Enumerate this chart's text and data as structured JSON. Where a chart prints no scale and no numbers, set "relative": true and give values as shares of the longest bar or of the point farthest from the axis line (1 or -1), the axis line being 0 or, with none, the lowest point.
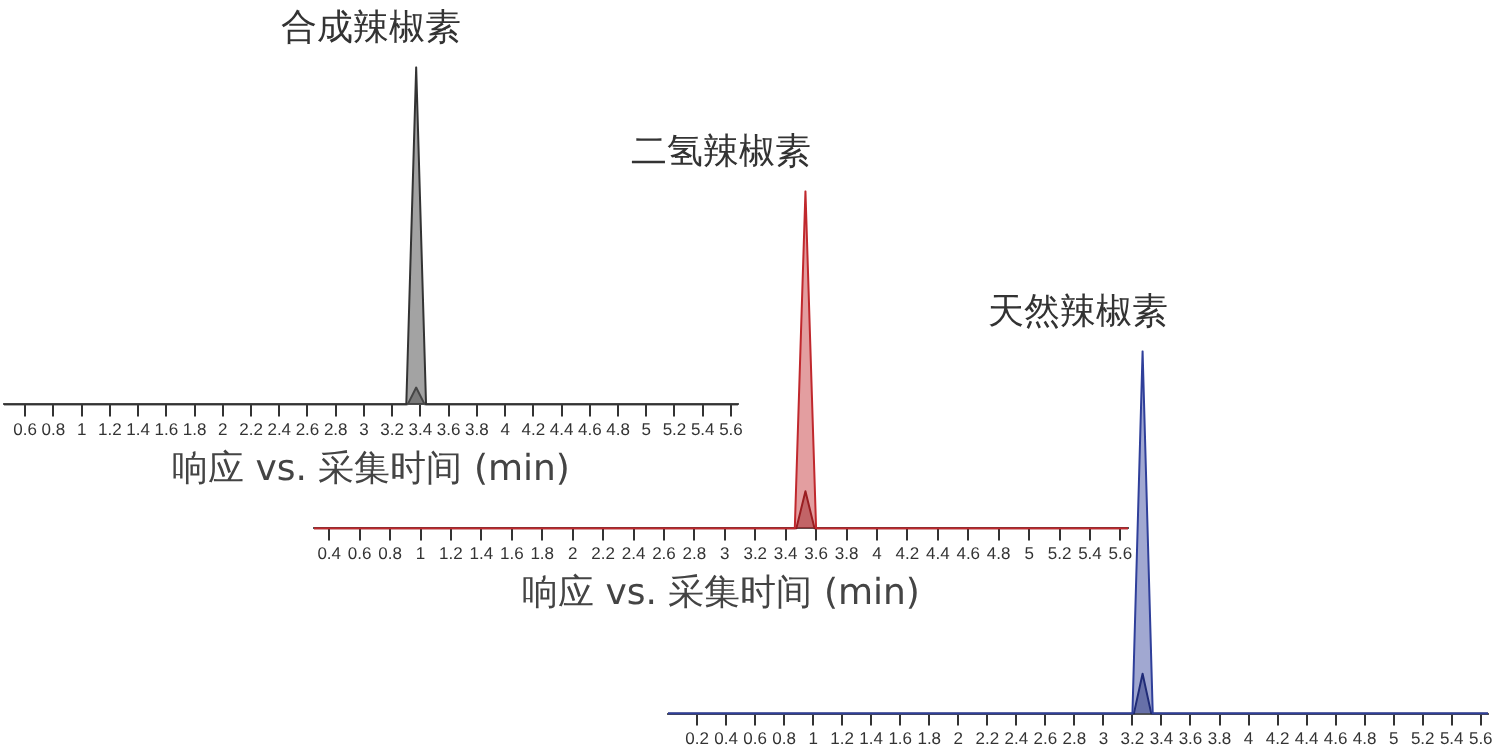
{
  "chart_data": [
    {
      "type": "area",
      "title": "合成辣椒素",
      "xlabel": "响应 vs. 采集时间 (min)",
      "relative": true,
      "tick_labels": "x",
      "grid": false,
      "marker": "none",
      "xlim": [
        0.45,
        5.65
      ],
      "xticks": [
        0.6,
        0.8,
        1,
        1.2,
        1.4,
        1.6,
        1.8,
        2,
        2.2,
        2.4,
        2.6,
        2.8,
        3,
        3.2,
        3.4,
        3.6,
        3.8,
        4,
        4.2,
        4.4,
        4.6,
        4.8,
        5,
        5.2,
        5.4,
        5.6
      ],
      "series": [
        {
          "color": "#333333",
          "x": [
            0.45,
            3.3,
            3.37,
            3.44,
            5.65
          ],
          "values": [
            0,
            0,
            1,
            0,
            0
          ]
        },
        {
          "color": "#555555",
          "x": [
            0.45,
            3.31,
            3.37,
            3.43,
            5.65
          ],
          "values": [
            0,
            0,
            0.05,
            0,
            0
          ]
        }
      ]
    },
    {
      "type": "area",
      "title": "二氢辣椒素",
      "xlabel": "响应 vs. 采集时间 (min)",
      "relative": true,
      "tick_labels": "x",
      "grid": false,
      "marker": "none",
      "xlim": [
        0.3,
        5.65
      ],
      "xticks": [
        0.4,
        0.6,
        0.8,
        1,
        1.2,
        1.4,
        1.6,
        1.8,
        2,
        2.2,
        2.4,
        2.6,
        2.8,
        3,
        3.2,
        3.4,
        3.6,
        3.8,
        4,
        4.2,
        4.4,
        4.6,
        4.8,
        5,
        5.2,
        5.4,
        5.6
      ],
      "series": [
        {
          "color": "#c0282d",
          "x": [
            0.3,
            3.46,
            3.53,
            3.6,
            5.65
          ],
          "values": [
            0,
            0,
            1,
            0,
            0
          ]
        },
        {
          "color": "#7a1418",
          "x": [
            0.3,
            3.47,
            3.53,
            3.59,
            5.65
          ],
          "values": [
            0,
            0,
            0.11,
            0,
            0
          ]
        }
      ]
    },
    {
      "type": "area",
      "title": "天然辣椒素",
      "relative": true,
      "tick_labels": "x",
      "grid": false,
      "marker": "none",
      "xlim": [
        0,
        5.65
      ],
      "xticks": [
        0.2,
        0.4,
        0.6,
        0.8,
        1,
        1.2,
        1.4,
        1.6,
        1.8,
        2,
        2.2,
        2.4,
        2.6,
        2.8,
        3,
        3.2,
        3.4,
        3.6,
        3.8,
        4,
        4.2,
        4.4,
        4.6,
        4.8,
        5,
        5.2,
        5.4,
        5.6
      ],
      "series": [
        {
          "color": "#2f3f9a",
          "x": [
            0,
            3.2,
            3.27,
            3.34,
            5.65
          ],
          "values": [
            0,
            0,
            1,
            0,
            0
          ]
        },
        {
          "color": "#141d5c",
          "x": [
            0,
            3.21,
            3.27,
            3.33,
            5.65
          ],
          "values": [
            0,
            0,
            0.11,
            0,
            0
          ]
        }
      ]
    }
  ]
}
